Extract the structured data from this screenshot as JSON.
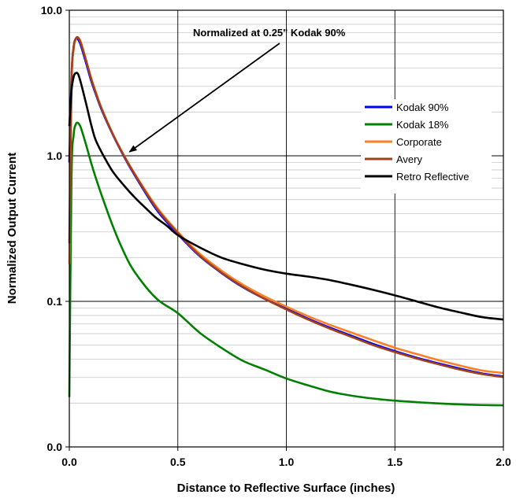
{
  "chart_data": {
    "type": "line",
    "xlabel": "Distance to Reflective Surface (inches)",
    "ylabel": "Normalized Output Current",
    "xlim": [
      0,
      2
    ],
    "ylim": [
      0.01,
      10
    ],
    "y_scale": "log",
    "grid": true,
    "legend_position": "right",
    "x_ticks": [
      {
        "value": 0,
        "label": "0.0"
      },
      {
        "value": 0.5,
        "label": "0.5"
      },
      {
        "value": 1.0,
        "label": "1.0"
      },
      {
        "value": 1.5,
        "label": "1.5"
      },
      {
        "value": 2.0,
        "label": "2.0"
      }
    ],
    "y_ticks": [
      {
        "value": 0.01,
        "label": "0.0"
      },
      {
        "value": 0.1,
        "label": "0.1"
      },
      {
        "value": 1,
        "label": "1.0"
      },
      {
        "value": 10,
        "label": "10.0"
      }
    ],
    "annotation": {
      "text": "Normalized at 0.25\" Kodak 90%",
      "x": 0.27,
      "y": 1.0
    },
    "series": [
      {
        "name": "Kodak 90%",
        "color": "#0000ff",
        "x": [
          0.0,
          0.01,
          0.02,
          0.03,
          0.04,
          0.05,
          0.06,
          0.08,
          0.1,
          0.12,
          0.15,
          0.2,
          0.25,
          0.3,
          0.4,
          0.5,
          0.6,
          0.7,
          0.8,
          0.9,
          1.0,
          1.1,
          1.2,
          1.3,
          1.4,
          1.5,
          1.6,
          1.7,
          1.8,
          1.9,
          2.0
        ],
        "y": [
          0.9,
          3.5,
          5.6,
          6.4,
          6.3,
          5.9,
          5.3,
          4.2,
          3.3,
          2.7,
          2.05,
          1.4,
          1.0,
          0.74,
          0.43,
          0.29,
          0.205,
          0.157,
          0.125,
          0.104,
          0.089,
          0.076,
          0.066,
          0.058,
          0.051,
          0.0455,
          0.041,
          0.0375,
          0.0345,
          0.032,
          0.0305
        ]
      },
      {
        "name": "Kodak 18%",
        "color": "#008000",
        "x": [
          0.0,
          0.01,
          0.02,
          0.03,
          0.04,
          0.05,
          0.06,
          0.08,
          0.1,
          0.12,
          0.15,
          0.2,
          0.25,
          0.3,
          0.4,
          0.5,
          0.6,
          0.7,
          0.8,
          0.9,
          1.0,
          1.1,
          1.2,
          1.3,
          1.4,
          1.5,
          1.6,
          1.7,
          1.8,
          1.9,
          2.0
        ],
        "y": [
          0.022,
          0.7,
          1.4,
          1.65,
          1.68,
          1.6,
          1.45,
          1.15,
          0.9,
          0.72,
          0.53,
          0.33,
          0.22,
          0.16,
          0.105,
          0.083,
          0.061,
          0.048,
          0.039,
          0.034,
          0.0295,
          0.0265,
          0.024,
          0.0225,
          0.0215,
          0.0208,
          0.0203,
          0.0199,
          0.0196,
          0.0194,
          0.0193
        ]
      },
      {
        "name": "Corporate",
        "color": "#ff7f27",
        "x": [
          0.0,
          0.01,
          0.02,
          0.03,
          0.04,
          0.05,
          0.06,
          0.08,
          0.1,
          0.12,
          0.15,
          0.2,
          0.25,
          0.3,
          0.4,
          0.5,
          0.6,
          0.7,
          0.8,
          0.9,
          1.0,
          1.1,
          1.2,
          1.3,
          1.4,
          1.5,
          1.6,
          1.7,
          1.8,
          1.9,
          2.0
        ],
        "y": [
          0.18,
          3.0,
          5.4,
          6.3,
          6.5,
          6.2,
          5.6,
          4.4,
          3.45,
          2.8,
          2.1,
          1.42,
          1.02,
          0.76,
          0.45,
          0.3,
          0.213,
          0.163,
          0.13,
          0.108,
          0.092,
          0.079,
          0.069,
          0.061,
          0.054,
          0.048,
          0.0435,
          0.0395,
          0.0362,
          0.0335,
          0.0322
        ]
      },
      {
        "name": "Avery",
        "color": "#a0401c",
        "x": [
          0.0,
          0.01,
          0.02,
          0.03,
          0.04,
          0.05,
          0.06,
          0.08,
          0.1,
          0.12,
          0.15,
          0.2,
          0.25,
          0.3,
          0.4,
          0.5,
          0.6,
          0.7,
          0.8,
          0.9,
          1.0,
          1.1,
          1.2,
          1.3,
          1.4,
          1.5,
          1.6,
          1.7,
          1.8,
          1.9,
          2.0
        ],
        "y": [
          0.25,
          3.2,
          5.6,
          6.4,
          6.5,
          6.1,
          5.5,
          4.35,
          3.4,
          2.75,
          2.08,
          1.41,
          1.01,
          0.75,
          0.44,
          0.295,
          0.207,
          0.158,
          0.126,
          0.104,
          0.088,
          0.075,
          0.065,
          0.057,
          0.05,
          0.0448,
          0.0405,
          0.037,
          0.034,
          0.0317,
          0.0302
        ]
      },
      {
        "name": "Retro Reflective",
        "color": "#000000",
        "x": [
          0.0,
          0.01,
          0.02,
          0.03,
          0.04,
          0.05,
          0.06,
          0.08,
          0.1,
          0.12,
          0.15,
          0.2,
          0.25,
          0.3,
          0.35,
          0.4,
          0.45,
          0.5,
          0.6,
          0.7,
          0.8,
          0.9,
          1.0,
          1.1,
          1.2,
          1.3,
          1.4,
          1.5,
          1.6,
          1.7,
          1.8,
          1.9,
          2.0
        ],
        "y": [
          1.6,
          2.8,
          3.5,
          3.7,
          3.65,
          3.3,
          2.9,
          2.2,
          1.65,
          1.3,
          1.05,
          0.78,
          0.63,
          0.52,
          0.44,
          0.375,
          0.33,
          0.285,
          0.235,
          0.2,
          0.18,
          0.165,
          0.155,
          0.148,
          0.14,
          0.13,
          0.12,
          0.11,
          0.1,
          0.091,
          0.084,
          0.078,
          0.075
        ]
      }
    ]
  }
}
